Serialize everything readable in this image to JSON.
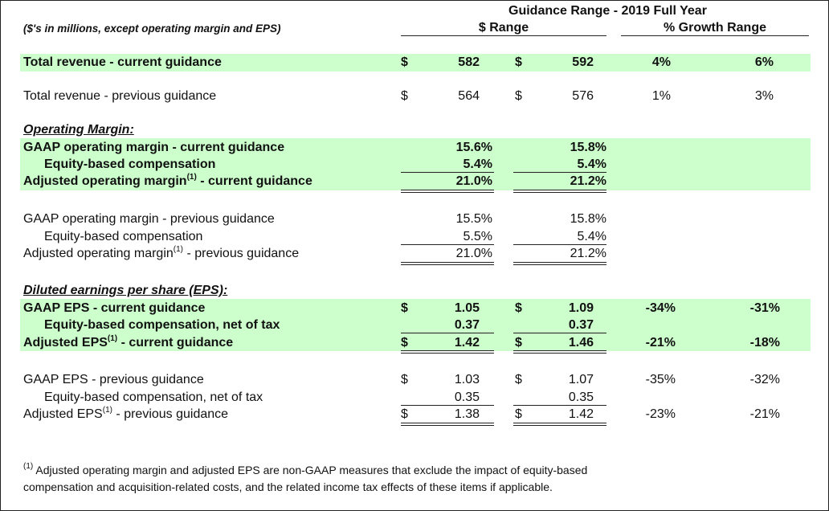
{
  "header": {
    "guidance_title": "Guidance Range - 2019 Full Year",
    "units_note": "($'s in millions, except operating margin and EPS)",
    "dollar_range": "$ Range",
    "growth_range": "% Growth Range"
  },
  "rows": {
    "rev_current": {
      "label": "Total revenue - current guidance",
      "cur1": "$",
      "low": "582",
      "cur2": "$",
      "high": "592",
      "g_low": "4%",
      "g_high": "6%"
    },
    "rev_previous": {
      "label": "Total revenue - previous guidance",
      "cur1": "$",
      "low": "564",
      "cur2": "$",
      "high": "576",
      "g_low": "1%",
      "g_high": "3%"
    },
    "om_heading": "Operating Margin:",
    "om_gaap_current": {
      "label": "GAAP operating margin - current guidance",
      "low": "15.6%",
      "high": "15.8%"
    },
    "om_equity_current": {
      "label": "Equity-based compensation",
      "low": "5.4%",
      "high": "5.4%"
    },
    "om_adj_current": {
      "label_a": "Adjusted operating margin",
      "sup": "(1)",
      "label_b": " - current guidance",
      "low": "21.0%",
      "high": "21.2%"
    },
    "om_gaap_previous": {
      "label": "GAAP operating margin - previous guidance",
      "low": "15.5%",
      "high": "15.8%"
    },
    "om_equity_previous": {
      "label": "Equity-based compensation",
      "low": "5.5%",
      "high": "5.4%"
    },
    "om_adj_previous": {
      "label_a": "Adjusted operating margin",
      "sup": "(1)",
      "label_b": " - previous guidance",
      "low": "21.0%",
      "high": "21.2%"
    },
    "eps_heading": "Diluted earnings per share (EPS):",
    "eps_gaap_current": {
      "label": "GAAP EPS - current guidance",
      "cur1": "$",
      "low": "1.05",
      "cur2": "$",
      "high": "1.09",
      "g_low": "-34%",
      "g_high": "-31%"
    },
    "eps_equity_current": {
      "label": "Equity-based compensation, net of tax",
      "low": "0.37",
      "high": "0.37"
    },
    "eps_adj_current": {
      "label_a": "Adjusted EPS",
      "sup": "(1)",
      "label_b": " - current guidance",
      "cur1": "$",
      "low": "1.42",
      "cur2": "$",
      "high": "1.46",
      "g_low": "-21%",
      "g_high": "-18%"
    },
    "eps_gaap_previous": {
      "label": "GAAP EPS - previous guidance",
      "cur1": "$",
      "low": "1.03",
      "cur2": "$",
      "high": "1.07",
      "g_low": "-35%",
      "g_high": "-32%"
    },
    "eps_equity_previous": {
      "label": "Equity-based compensation, net of tax",
      "low": "0.35",
      "high": "0.35"
    },
    "eps_adj_previous": {
      "label_a": "Adjusted EPS",
      "sup": "(1)",
      "label_b": " - previous guidance",
      "cur1": "$",
      "low": "1.38",
      "cur2": "$",
      "high": "1.42",
      "g_low": "-23%",
      "g_high": "-21%"
    }
  },
  "footnote": {
    "sup": "(1)",
    "line1": " Adjusted operating margin and adjusted EPS are non-GAAP measures that exclude the impact of equity-based",
    "line2": "compensation and acquisition-related costs, and the related income tax effects of these items if applicable."
  },
  "colors": {
    "band": "#ccffcc",
    "rule": "#222222"
  }
}
